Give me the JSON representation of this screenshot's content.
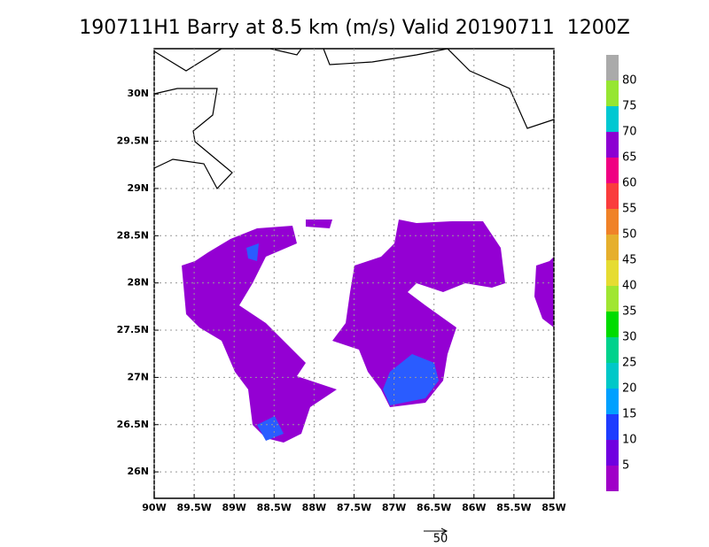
{
  "chart_data": {
    "type": "vector",
    "title": "190711H1 Barry at 8.5 km (m/s) Valid 20190711  1200Z",
    "xlim": [
      -90,
      -85
    ],
    "ylim": [
      25.72,
      30.48
    ],
    "xticks": [
      {
        "value": -90,
        "label": "90W"
      },
      {
        "value": -89.5,
        "label": "89.5W"
      },
      {
        "value": -89,
        "label": "89W"
      },
      {
        "value": -88.5,
        "label": "88.5W"
      },
      {
        "value": -88,
        "label": "88W"
      },
      {
        "value": -87.5,
        "label": "87.5W"
      },
      {
        "value": -87,
        "label": "87W"
      },
      {
        "value": -86.5,
        "label": "86.5W"
      },
      {
        "value": -86,
        "label": "86W"
      },
      {
        "value": -85.5,
        "label": "85.5W"
      },
      {
        "value": -85,
        "label": "85W"
      }
    ],
    "yticks": [
      {
        "value": 26,
        "label": "26N"
      },
      {
        "value": 26.5,
        "label": "26.5N"
      },
      {
        "value": 27,
        "label": "27N"
      },
      {
        "value": 27.5,
        "label": "27.5N"
      },
      {
        "value": 28,
        "label": "28N"
      },
      {
        "value": 28.5,
        "label": "28.5N"
      },
      {
        "value": 29,
        "label": "29N"
      },
      {
        "value": 29.5,
        "label": "29.5N"
      },
      {
        "value": 30,
        "label": "30N"
      }
    ],
    "grid": true,
    "colorbar": {
      "levels": [
        5,
        10,
        15,
        20,
        25,
        30,
        35,
        40,
        45,
        50,
        55,
        60,
        65,
        70,
        75,
        80
      ],
      "colors": [
        "#a000c8",
        "#7000e0",
        "#1e3cff",
        "#00a0ff",
        "#00c8c8",
        "#00d28c",
        "#00dc00",
        "#a0e632",
        "#e6dc32",
        "#e6af2d",
        "#f08228",
        "#fa3c3c",
        "#f00082",
        "#8c00d2",
        "#00c8d2",
        "#96e632",
        "#aaaaaa"
      ]
    },
    "reference_vector": 50
  }
}
